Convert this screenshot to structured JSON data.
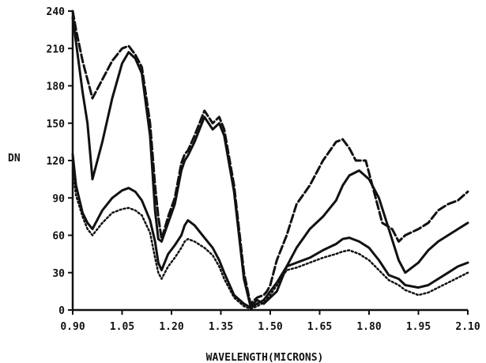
{
  "chart_data": {
    "type": "line",
    "title": "",
    "xlabel": "WAVELENGTH(MICRONS)",
    "ylabel": "DN",
    "xlim": [
      0.9,
      2.1
    ],
    "ylim": [
      0,
      240
    ],
    "xticks": [
      0.9,
      1.05,
      1.2,
      1.35,
      1.5,
      1.65,
      1.8,
      1.95,
      2.1
    ],
    "xtick_labels": [
      "0.90",
      "1.05",
      "1.20",
      "1.35",
      "1.50",
      "1.65",
      "1.80",
      "1.95",
      "2.10"
    ],
    "yticks": [
      0,
      30,
      60,
      90,
      120,
      150,
      180,
      210,
      240
    ],
    "ytick_labels": [
      "0",
      "30",
      "60",
      "90",
      "120",
      "150",
      "180",
      "210",
      "240"
    ],
    "grid": false,
    "legend": "none",
    "series": [
      {
        "style": "dashed",
        "color": "#111111",
        "x": [
          0.9,
          0.91,
          0.93,
          0.945,
          0.96,
          0.99,
          1.02,
          1.05,
          1.07,
          1.09,
          1.11,
          1.135,
          1.15,
          1.16,
          1.17,
          1.19,
          1.21,
          1.23,
          1.24,
          1.25,
          1.27,
          1.3,
          1.325,
          1.345,
          1.36,
          1.39,
          1.42,
          1.44,
          1.46,
          1.48,
          1.49,
          1.5,
          1.52,
          1.55,
          1.58,
          1.62,
          1.66,
          1.7,
          1.72,
          1.74,
          1.76,
          1.79,
          1.81,
          1.84,
          1.87,
          1.89,
          1.91,
          1.95,
          1.98,
          2.01,
          2.04,
          2.07,
          2.1
        ],
        "y": [
          240,
          225,
          200,
          185,
          170,
          185,
          200,
          210,
          212,
          205,
          195,
          150,
          100,
          75,
          57,
          75,
          90,
          118,
          125,
          128,
          140,
          160,
          150,
          155,
          145,
          100,
          30,
          5,
          10,
          12,
          15,
          20,
          40,
          60,
          85,
          100,
          120,
          135,
          137,
          130,
          120,
          120,
          100,
          70,
          65,
          55,
          60,
          65,
          70,
          80,
          85,
          88,
          95
        ]
      },
      {
        "style": "solid",
        "color": "#111111",
        "x": [
          0.9,
          0.91,
          0.93,
          0.945,
          0.96,
          0.99,
          1.02,
          1.05,
          1.07,
          1.09,
          1.11,
          1.135,
          1.15,
          1.16,
          1.17,
          1.19,
          1.21,
          1.23,
          1.24,
          1.25,
          1.27,
          1.3,
          1.325,
          1.345,
          1.36,
          1.39,
          1.42,
          1.44,
          1.46,
          1.48,
          1.5,
          1.52,
          1.55,
          1.58,
          1.62,
          1.66,
          1.7,
          1.72,
          1.74,
          1.77,
          1.8,
          1.83,
          1.86,
          1.89,
          1.91,
          1.95,
          1.98,
          2.01,
          2.04,
          2.07,
          2.1
        ],
        "y": [
          235,
          215,
          175,
          150,
          105,
          135,
          170,
          198,
          207,
          202,
          190,
          140,
          80,
          57,
          55,
          70,
          85,
          112,
          120,
          124,
          135,
          155,
          145,
          150,
          140,
          95,
          25,
          3,
          8,
          5,
          10,
          15,
          35,
          50,
          65,
          75,
          88,
          100,
          108,
          112,
          105,
          90,
          65,
          40,
          30,
          38,
          48,
          55,
          60,
          65,
          70
        ]
      },
      {
        "style": "solid",
        "color": "#111111",
        "x": [
          0.9,
          0.91,
          0.93,
          0.945,
          0.96,
          0.99,
          1.02,
          1.05,
          1.07,
          1.09,
          1.11,
          1.135,
          1.15,
          1.16,
          1.17,
          1.19,
          1.21,
          1.23,
          1.24,
          1.25,
          1.27,
          1.3,
          1.325,
          1.345,
          1.36,
          1.39,
          1.42,
          1.44,
          1.46,
          1.48,
          1.5,
          1.52,
          1.55,
          1.58,
          1.62,
          1.66,
          1.7,
          1.72,
          1.74,
          1.77,
          1.8,
          1.83,
          1.86,
          1.89,
          1.91,
          1.95,
          1.98,
          2.01,
          2.04,
          2.07,
          2.1
        ],
        "y": [
          125,
          100,
          78,
          70,
          65,
          80,
          90,
          96,
          98,
          95,
          88,
          72,
          55,
          38,
          32,
          45,
          52,
          60,
          68,
          72,
          68,
          58,
          50,
          40,
          30,
          12,
          5,
          2,
          5,
          8,
          15,
          22,
          35,
          38,
          42,
          48,
          53,
          57,
          58,
          55,
          50,
          40,
          28,
          25,
          20,
          18,
          20,
          25,
          30,
          35,
          38
        ]
      },
      {
        "style": "dotted",
        "color": "#111111",
        "x": [
          0.9,
          0.91,
          0.93,
          0.945,
          0.96,
          0.99,
          1.02,
          1.05,
          1.07,
          1.09,
          1.11,
          1.135,
          1.15,
          1.16,
          1.17,
          1.19,
          1.21,
          1.23,
          1.24,
          1.25,
          1.27,
          1.3,
          1.325,
          1.345,
          1.36,
          1.39,
          1.42,
          1.44,
          1.46,
          1.48,
          1.5,
          1.52,
          1.55,
          1.58,
          1.62,
          1.66,
          1.7,
          1.72,
          1.74,
          1.77,
          1.8,
          1.83,
          1.86,
          1.89,
          1.91,
          1.95,
          1.98,
          2.01,
          2.04,
          2.07,
          2.1
        ],
        "y": [
          112,
          92,
          75,
          65,
          60,
          70,
          78,
          81,
          82,
          80,
          76,
          62,
          42,
          30,
          25,
          35,
          42,
          50,
          55,
          57,
          55,
          50,
          44,
          35,
          25,
          10,
          3,
          1,
          3,
          6,
          12,
          20,
          32,
          34,
          38,
          42,
          45,
          47,
          48,
          45,
          40,
          32,
          24,
          20,
          16,
          12,
          14,
          18,
          22,
          26,
          30
        ]
      }
    ]
  }
}
